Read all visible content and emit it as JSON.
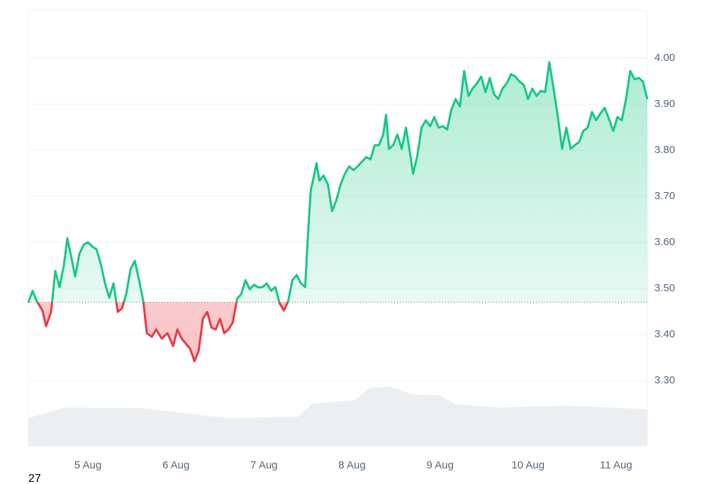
{
  "chart_data": {
    "type": "line",
    "x": [
      4.323,
      4.371,
      4.419,
      4.484,
      4.524,
      4.581,
      4.629,
      4.677,
      4.726,
      4.766,
      4.806,
      4.855,
      4.903,
      4.952,
      5.0,
      5.048,
      5.097,
      5.145,
      5.194,
      5.242,
      5.29,
      5.339,
      5.387,
      5.435,
      5.484,
      5.532,
      5.581,
      5.629,
      5.669,
      5.726,
      5.774,
      5.839,
      5.903,
      5.968,
      6.016,
      6.065,
      6.113,
      6.161,
      6.21,
      6.258,
      6.306,
      6.355,
      6.403,
      6.452,
      6.5,
      6.548,
      6.597,
      6.645,
      6.694,
      6.742,
      6.79,
      6.839,
      6.887,
      6.935,
      6.984,
      7.032,
      7.081,
      7.129,
      7.177,
      7.226,
      7.274,
      7.323,
      7.371,
      7.419,
      7.468,
      7.5,
      7.532,
      7.565,
      7.597,
      7.629,
      7.677,
      7.726,
      7.774,
      7.823,
      7.871,
      7.919,
      7.968,
      8.016,
      8.065,
      8.113,
      8.161,
      8.21,
      8.258,
      8.306,
      8.355,
      8.387,
      8.419,
      8.468,
      8.516,
      8.565,
      8.613,
      8.645,
      8.694,
      8.742,
      8.79,
      8.839,
      8.887,
      8.935,
      8.984,
      9.032,
      9.081,
      9.129,
      9.177,
      9.226,
      9.274,
      9.323,
      9.371,
      9.419,
      9.468,
      9.516,
      9.565,
      9.613,
      9.661,
      9.71,
      9.758,
      9.806,
      9.855,
      9.903,
      9.952,
      10.0,
      10.048,
      10.097,
      10.145,
      10.194,
      10.242,
      10.29,
      10.339,
      10.387,
      10.435,
      10.484,
      10.532,
      10.581,
      10.629,
      10.677,
      10.726,
      10.774,
      10.823,
      10.871,
      10.919,
      10.968,
      11.016,
      11.065,
      11.113,
      11.161,
      11.21,
      11.258,
      11.306,
      11.355
    ],
    "series": [
      {
        "values": [
          3.469,
          3.495,
          3.472,
          3.452,
          3.418,
          3.449,
          3.538,
          3.503,
          3.549,
          3.609,
          3.572,
          3.526,
          3.575,
          3.595,
          3.6,
          3.591,
          3.585,
          3.554,
          3.511,
          3.48,
          3.511,
          3.449,
          3.457,
          3.488,
          3.542,
          3.56,
          3.518,
          3.472,
          3.403,
          3.395,
          3.411,
          3.391,
          3.403,
          3.375,
          3.411,
          3.391,
          3.38,
          3.369,
          3.342,
          3.365,
          3.434,
          3.449,
          3.415,
          3.411,
          3.434,
          3.403,
          3.411,
          3.426,
          3.477,
          3.488,
          3.518,
          3.498,
          3.508,
          3.502,
          3.503,
          3.511,
          3.495,
          3.503,
          3.468,
          3.452,
          3.472,
          3.518,
          3.529,
          3.511,
          3.503,
          3.618,
          3.714,
          3.742,
          3.772,
          3.734,
          3.745,
          3.726,
          3.668,
          3.692,
          3.726,
          3.749,
          3.765,
          3.757,
          3.765,
          3.775,
          3.785,
          3.78,
          3.811,
          3.811,
          3.834,
          3.877,
          3.803,
          3.811,
          3.834,
          3.803,
          3.849,
          3.811,
          3.749,
          3.788,
          3.849,
          3.865,
          3.852,
          3.872,
          3.849,
          3.852,
          3.845,
          3.888,
          3.911,
          3.895,
          3.972,
          3.918,
          3.934,
          3.945,
          3.96,
          3.926,
          3.957,
          3.922,
          3.911,
          3.934,
          3.945,
          3.965,
          3.96,
          3.949,
          3.942,
          3.911,
          3.934,
          3.918,
          3.929,
          3.926,
          3.991,
          3.934,
          3.872,
          3.803,
          3.849,
          3.803,
          3.811,
          3.818,
          3.842,
          3.849,
          3.883,
          3.865,
          3.88,
          3.892,
          3.868,
          3.842,
          3.872,
          3.865,
          3.911,
          3.972,
          3.954,
          3.957,
          3.949,
          3.911
        ]
      }
    ],
    "baseline": 3.47,
    "color_above": "#16c784",
    "color_below": "#ea3943",
    "volume": {
      "x": [
        4.323,
        4.726,
        5.613,
        6.581,
        7.387,
        7.548,
        8.032,
        8.194,
        8.435,
        8.677,
        9.0,
        9.161,
        9.645,
        10.452,
        11.355
      ],
      "values": [
        6.5,
        8.9,
        8.8,
        6.5,
        6.8,
        9.8,
        10.6,
        13.3,
        13.8,
        12.0,
        11.7,
        9.8,
        8.9,
        9.4,
        8.5
      ],
      "color": "#eceff1",
      "axis": "y2"
    },
    "xlim": [
      4.323,
      11.355
    ],
    "xticks": [
      {
        "value": 5,
        "label": "5 Aug"
      },
      {
        "value": 6,
        "label": "6 Aug"
      },
      {
        "value": 7,
        "label": "7 Aug"
      },
      {
        "value": 8,
        "label": "8 Aug"
      },
      {
        "value": 9,
        "label": "9 Aug"
      },
      {
        "value": 10,
        "label": "10 Aug"
      },
      {
        "value": 11,
        "label": "11 Aug"
      }
    ],
    "ylim": [
      3.157,
      4.103
    ],
    "yticks": [
      {
        "value": 3.3,
        "label": "3.30"
      },
      {
        "value": 3.4,
        "label": "3.40"
      },
      {
        "value": 3.5,
        "label": "3.50"
      },
      {
        "value": 3.6,
        "label": "3.60"
      },
      {
        "value": 3.7,
        "label": "3.70"
      },
      {
        "value": 3.8,
        "label": "3.80"
      },
      {
        "value": 3.9,
        "label": "3.90"
      },
      {
        "value": 4.0,
        "label": "4.00"
      }
    ],
    "y2lim": [
      0,
      100
    ],
    "grid": true,
    "footer": "27"
  }
}
